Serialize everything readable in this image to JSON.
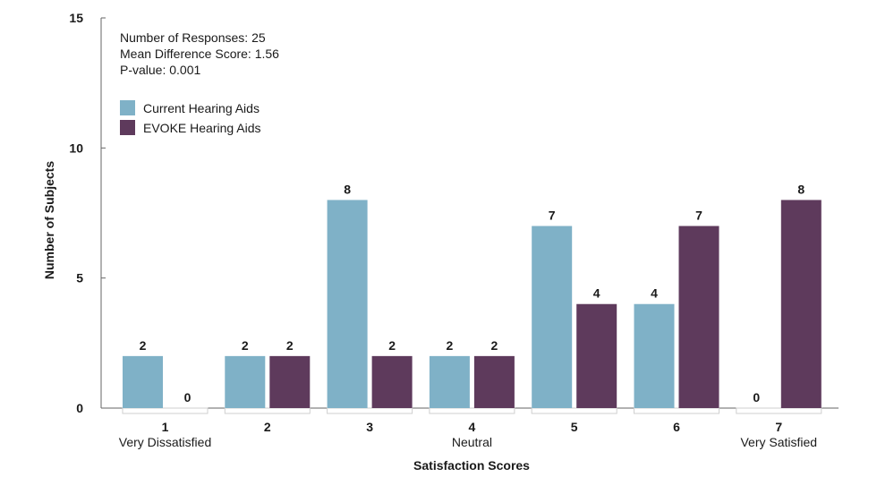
{
  "chart_data": {
    "type": "bar",
    "categories": [
      "1",
      "2",
      "3",
      "4",
      "5",
      "6",
      "7"
    ],
    "category_sublabels": [
      "Very Dissatisfied",
      "",
      "",
      "Neutral",
      "",
      "",
      "Very Satisfied"
    ],
    "series": [
      {
        "name": "Current Hearing Aids",
        "color": "#7fb1c7",
        "values": [
          2,
          2,
          8,
          2,
          7,
          4,
          0
        ]
      },
      {
        "name": "EVOKE Hearing Aids",
        "color": "#5e3a5c",
        "values": [
          0,
          2,
          2,
          2,
          4,
          7,
          8
        ]
      }
    ],
    "xlabel": "Satisfaction Scores",
    "ylabel": "Number of Subjects",
    "ylim": [
      0,
      15
    ],
    "yticks": [
      "0",
      "5",
      "10",
      "15"
    ],
    "grid": false,
    "legend_position": "top-left",
    "annotations": [
      "Number of Responses: 25",
      "Mean Difference Score: 1.56",
      "P-value: 0.001"
    ]
  }
}
